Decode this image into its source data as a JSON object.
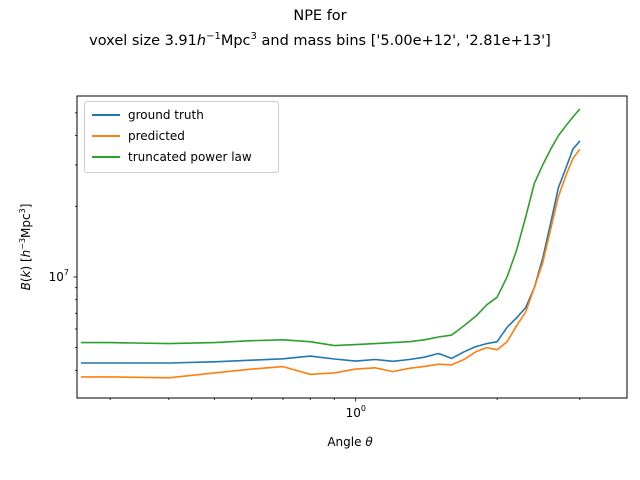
{
  "figure": {
    "title_line1": "NPE for",
    "title_line2_prefix": "voxel size 3.91",
    "title_line2_h": "h",
    "title_line2_hexp": "−1",
    "title_line2_mpc": "Mpc",
    "title_line2_mpcexp": "3",
    "title_line2_suffix": " and mass bins ['5.00e+12', '2.81e+13']"
  },
  "chart_data": {
    "type": "line",
    "title": "NPE for voxel size 3.91h^-1Mpc^3 and mass bins ['5.00e+12', '2.81e+13']",
    "xlabel": "Angle θ",
    "ylabel": "B(k) [h^-3Mpc^3]",
    "x_scale": "log",
    "y_scale": "log",
    "xlim": [
      0.255,
      3.78
    ],
    "ylim": [
      3050000,
      59000000
    ],
    "x_ticks": [
      {
        "value": 1.0,
        "label": "10^0"
      }
    ],
    "y_ticks": [
      {
        "value": 10000000,
        "label": "10^7"
      }
    ],
    "legend_position": "upper left",
    "grid": false,
    "x": [
      0.26,
      0.3,
      0.4,
      0.5,
      0.6,
      0.7,
      0.8,
      0.9,
      1.0,
      1.1,
      1.2,
      1.3,
      1.4,
      1.5,
      1.6,
      1.7,
      1.8,
      1.9,
      2.0,
      2.1,
      2.2,
      2.3,
      2.4,
      2.5,
      2.6,
      2.7,
      2.8,
      2.9,
      3.0
    ],
    "series": [
      {
        "name": "ground truth",
        "color": "#1f77b4",
        "values": [
          4300000.0,
          4300000.0,
          4300000.0,
          4350000.0,
          4420000.0,
          4480000.0,
          4600000.0,
          4470000.0,
          4380000.0,
          4450000.0,
          4370000.0,
          4450000.0,
          4550000.0,
          4720000.0,
          4500000.0,
          4800000.0,
          5050000.0,
          5200000.0,
          5300000.0,
          6100000.0,
          6700000.0,
          7400000.0,
          9000000.0,
          12000000.0,
          17000000.0,
          24000000.0,
          29000000.0,
          35000000.0,
          38000000.0
        ]
      },
      {
        "name": "predicted",
        "color": "#ff7f0e",
        "values": [
          3750000.0,
          3750000.0,
          3720000.0,
          3900000.0,
          4050000.0,
          4150000.0,
          3850000.0,
          3900000.0,
          4050000.0,
          4100000.0,
          3950000.0,
          4080000.0,
          4160000.0,
          4250000.0,
          4220000.0,
          4450000.0,
          4800000.0,
          5000000.0,
          4900000.0,
          5300000.0,
          6200000.0,
          7100000.0,
          9000000.0,
          11500000.0,
          16000000.0,
          22000000.0,
          27000000.0,
          32000000.0,
          35000000.0
        ]
      },
      {
        "name": "truncated power law",
        "color": "#2ca02c",
        "values": [
          5250000.0,
          5250000.0,
          5200000.0,
          5250000.0,
          5350000.0,
          5400000.0,
          5300000.0,
          5100000.0,
          5150000.0,
          5200000.0,
          5250000.0,
          5300000.0,
          5400000.0,
          5550000.0,
          5650000.0,
          6200000.0,
          6800000.0,
          7600000.0,
          8200000.0,
          10000000.0,
          13000000.0,
          18000000.0,
          25000000.0,
          30000000.0,
          35000000.0,
          40000000.0,
          44000000.0,
          48000000.0,
          52000000.0
        ]
      }
    ]
  }
}
